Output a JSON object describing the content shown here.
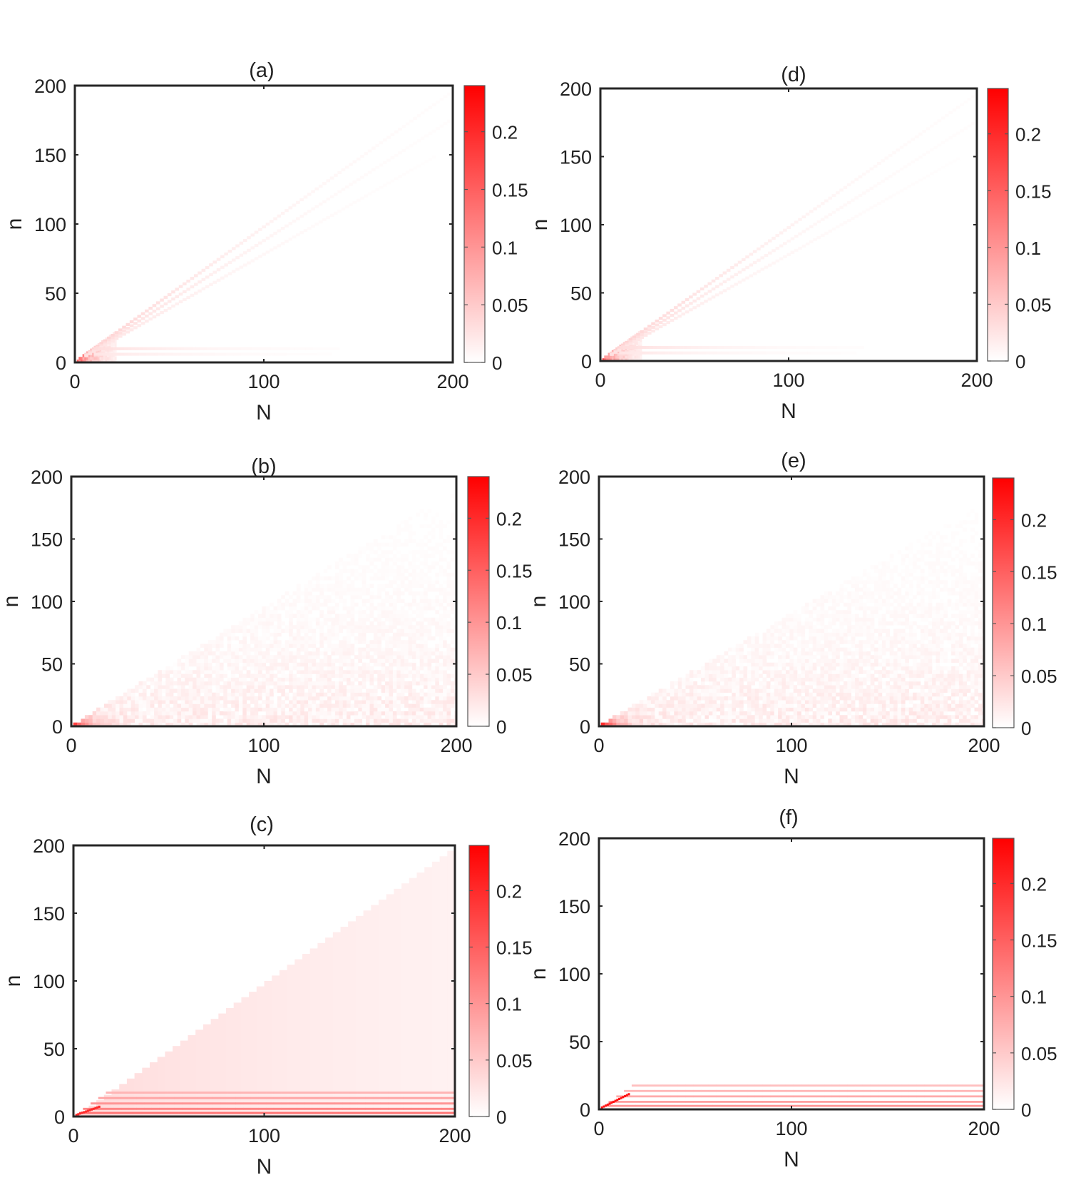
{
  "figure": {
    "panels": [
      {
        "label": "(a)",
        "pattern": "fan",
        "xlabel": "N",
        "ylabel": "n"
      },
      {
        "label": "(d)",
        "pattern": "fan",
        "xlabel": "N",
        "ylabel": "n"
      },
      {
        "label": "(b)",
        "pattern": "noisy-wedge",
        "xlabel": "N",
        "ylabel": "n"
      },
      {
        "label": "(e)",
        "pattern": "noisy-wedge",
        "xlabel": "N",
        "ylabel": "n"
      },
      {
        "label": "(c)",
        "pattern": "wedge-bands",
        "xlabel": "N",
        "ylabel": "n"
      },
      {
        "label": "(f)",
        "pattern": "bands",
        "xlabel": "N",
        "ylabel": "n"
      }
    ]
  },
  "chart_data": [
    {
      "type": "heatmap",
      "title": "(a)",
      "xlabel": "N",
      "ylabel": "n",
      "xlim": [
        0,
        200
      ],
      "ylim": [
        0,
        200
      ],
      "xticks": [
        0,
        100,
        200
      ],
      "yticks": [
        0,
        50,
        100,
        150,
        200
      ],
      "colorbar": {
        "ticks": [
          0,
          0.05,
          0.1,
          0.15,
          0.2
        ],
        "range": [
          0,
          0.24
        ],
        "colormap": [
          "#ffffff",
          "#ff0000"
        ]
      },
      "note": "values concentrated along diagonal lines n≈N and a weak band near n≈10, strongest near origin (~0.2)"
    },
    {
      "type": "heatmap",
      "title": "(d)",
      "xlabel": "N",
      "ylabel": "n",
      "xlim": [
        0,
        200
      ],
      "ylim": [
        0,
        200
      ],
      "xticks": [
        0,
        100,
        200
      ],
      "yticks": [
        0,
        50,
        100,
        150,
        200
      ],
      "colorbar": {
        "ticks": [
          0,
          0.05,
          0.1,
          0.15,
          0.2
        ],
        "range": [
          0,
          0.24
        ],
        "colormap": [
          "#ffffff",
          "#ff0000"
        ]
      }
    },
    {
      "type": "heatmap",
      "title": "(b)",
      "xlabel": "N",
      "ylabel": "n",
      "xlim": [
        0,
        200
      ],
      "ylim": [
        0,
        200
      ],
      "xticks": [
        0,
        100,
        200
      ],
      "yticks": [
        0,
        50,
        100,
        150,
        200
      ],
      "colorbar": {
        "ticks": [
          0,
          0.05,
          0.1,
          0.15,
          0.2
        ],
        "range": [
          0,
          0.24
        ],
        "colormap": [
          "#ffffff",
          "#ff0000"
        ]
      }
    },
    {
      "type": "heatmap",
      "title": "(e)",
      "xlabel": "N",
      "ylabel": "n",
      "xlim": [
        0,
        200
      ],
      "ylim": [
        0,
        200
      ],
      "xticks": [
        0,
        100,
        200
      ],
      "yticks": [
        0,
        50,
        100,
        150,
        200
      ],
      "colorbar": {
        "ticks": [
          0,
          0.05,
          0.1,
          0.15,
          0.2
        ],
        "range": [
          0,
          0.24
        ],
        "colormap": [
          "#ffffff",
          "#ff0000"
        ]
      }
    },
    {
      "type": "heatmap",
      "title": "(c)",
      "xlabel": "N",
      "ylabel": "n",
      "xlim": [
        0,
        200
      ],
      "ylim": [
        0,
        200
      ],
      "xticks": [
        0,
        100,
        200
      ],
      "yticks": [
        0,
        50,
        100,
        150,
        200
      ],
      "colorbar": {
        "ticks": [
          0,
          0.05,
          0.1,
          0.15,
          0.2
        ],
        "range": [
          0,
          0.24
        ],
        "colormap": [
          "#ffffff",
          "#ff0000"
        ]
      }
    },
    {
      "type": "heatmap",
      "title": "(f)",
      "xlabel": "N",
      "ylabel": "n",
      "xlim": [
        0,
        200
      ],
      "ylim": [
        0,
        200
      ],
      "xticks": [
        0,
        100,
        200
      ],
      "yticks": [
        0,
        50,
        100,
        150,
        200
      ],
      "colorbar": {
        "ticks": [
          0,
          0.05,
          0.1,
          0.15,
          0.2
        ],
        "range": [
          0,
          0.24
        ],
        "colormap": [
          "#ffffff",
          "#ff0000"
        ]
      }
    }
  ]
}
